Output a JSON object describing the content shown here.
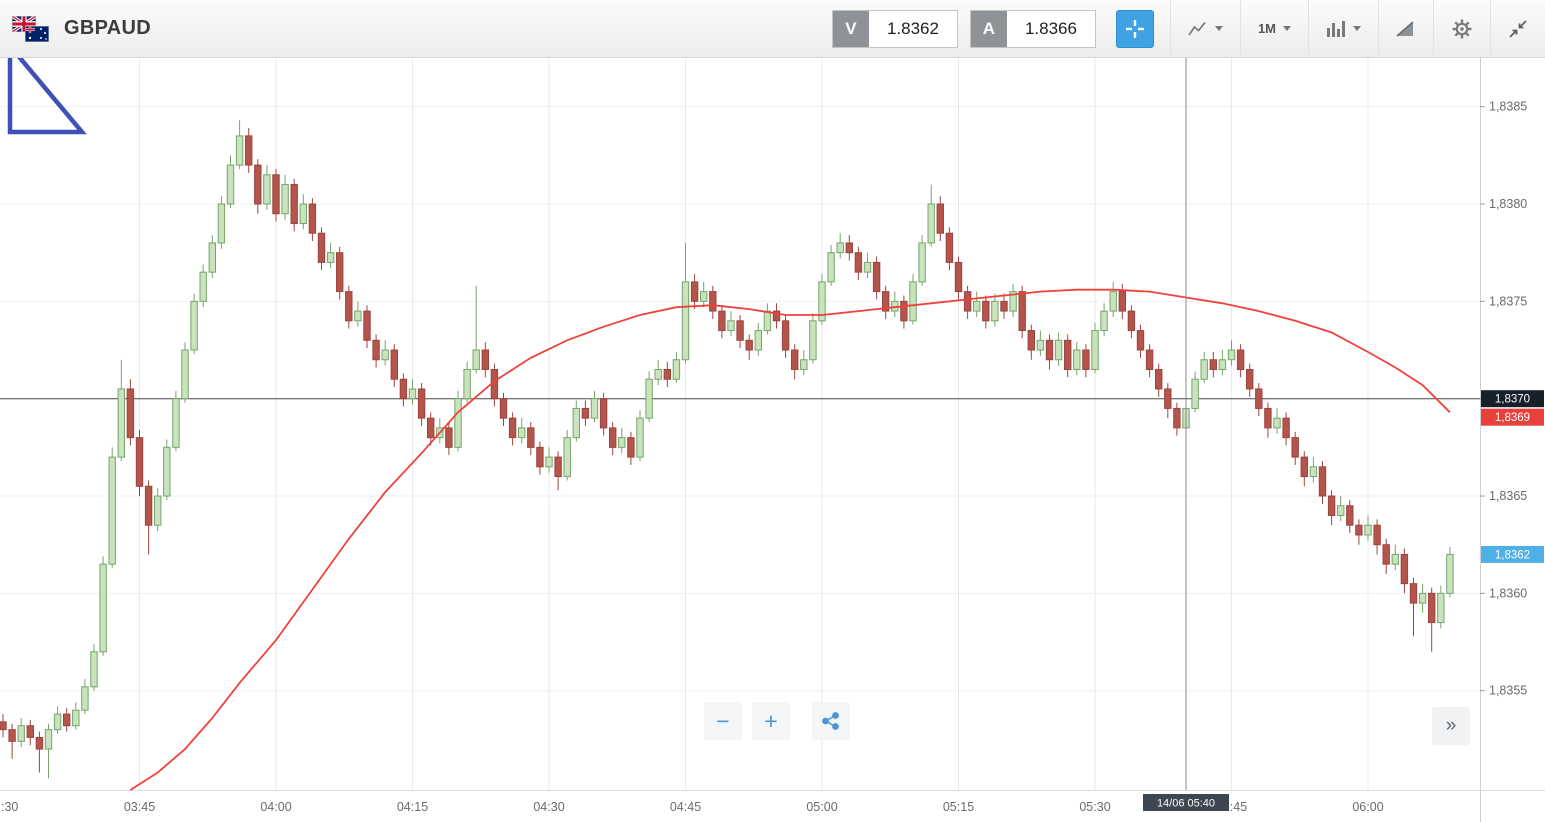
{
  "header": {
    "symbol": "GBPAUD",
    "sell": {
      "label": "V",
      "value": "1.8362"
    },
    "buy": {
      "label": "A",
      "value": "1.8366"
    },
    "timeframe": "1M"
  },
  "controls": {
    "zoom_out": "−",
    "zoom_in": "+",
    "expand": "»"
  },
  "icons": [
    "gb-au-flags-icon",
    "crosshair-icon",
    "chart-type-icon",
    "chevron-down-icon",
    "indicators-icon",
    "trend-icon",
    "settings-gear-icon",
    "collapse-icon",
    "zoom-out-icon",
    "zoom-in-icon",
    "share-icon",
    "expand-right-icon"
  ],
  "colors": {
    "up_fill": "#c9e4bc",
    "up_stroke": "#76a46c",
    "down_fill": "#b5544b",
    "down_stroke": "#9c4440",
    "ma": "#f0413b",
    "accent_blue": "#3fa3e3",
    "badge_dark": "#15202b",
    "badge_red": "#e8413b",
    "badge_blue": "#4fb0e8",
    "drawing": "#3f51b5"
  },
  "chart_data": {
    "type": "candlestick",
    "symbol": "GBPAUD",
    "interval": "1M",
    "start_time": "03:30",
    "minutes_per_candle": 1,
    "price_base": 1.83,
    "pip_unit": 0.0001,
    "grid": true,
    "y_axis": {
      "min_pips": 49.9,
      "max_pips": 87.5,
      "tick_pips": [
        85,
        80,
        75,
        70,
        65,
        60,
        55
      ],
      "tick_labels": [
        "1,8385",
        "1,8380",
        "1,8375",
        "1,8370",
        "1,8365",
        "1,8360",
        "1,8355"
      ]
    },
    "x_axis": {
      "ticks": [
        {
          "minute": 0,
          "label": ":30"
        },
        {
          "minute": 15,
          "label": "03:45"
        },
        {
          "minute": 30,
          "label": "04:00"
        },
        {
          "minute": 45,
          "label": "04:15"
        },
        {
          "minute": 60,
          "label": "04:30"
        },
        {
          "minute": 75,
          "label": "04:45"
        },
        {
          "minute": 90,
          "label": "05:00"
        },
        {
          "minute": 105,
          "label": "05:15"
        },
        {
          "minute": 120,
          "label": "05:30"
        },
        {
          "minute": 135,
          "label": "05:45"
        },
        {
          "minute": 150,
          "label": "06:00"
        }
      ]
    },
    "candles_ohlc_pips": [
      [
        53.4,
        53.8,
        52.6,
        53
      ],
      [
        53,
        53.3,
        51.5,
        52.4
      ],
      [
        52.4,
        53.6,
        52.1,
        53.2
      ],
      [
        53.2,
        53.5,
        52.2,
        52.6
      ],
      [
        52.6,
        52.9,
        50.8,
        52
      ],
      [
        52,
        53.3,
        50.5,
        53
      ],
      [
        53,
        54.2,
        52.8,
        53.8
      ],
      [
        53.8,
        54.1,
        52.9,
        53.2
      ],
      [
        53.2,
        54.4,
        53,
        54
      ],
      [
        54,
        55.6,
        53.8,
        55.2
      ],
      [
        55.2,
        57.4,
        55,
        57
      ],
      [
        57,
        61.9,
        56.8,
        61.5
      ],
      [
        61.5,
        67.5,
        61.3,
        67
      ],
      [
        67,
        72,
        66.8,
        70.5
      ],
      [
        70.5,
        71,
        67.6,
        68
      ],
      [
        68,
        68.4,
        65,
        65.5
      ],
      [
        65.5,
        65.8,
        62,
        63.5
      ],
      [
        63.5,
        65.4,
        63.2,
        65
      ],
      [
        65,
        67.9,
        64.8,
        67.5
      ],
      [
        67.5,
        70.4,
        67.3,
        70
      ],
      [
        70,
        72.9,
        69.8,
        72.5
      ],
      [
        72.5,
        75.4,
        72.3,
        75
      ],
      [
        75,
        76.9,
        74.7,
        76.5
      ],
      [
        76.5,
        78.4,
        76.2,
        78
      ],
      [
        78,
        80.4,
        77.7,
        80
      ],
      [
        80,
        82.5,
        79.8,
        82
      ],
      [
        82,
        84.3,
        81.8,
        83.5
      ],
      [
        83.5,
        83.9,
        81.6,
        82
      ],
      [
        82,
        82.3,
        79.5,
        80
      ],
      [
        80,
        82,
        79.7,
        81.5
      ],
      [
        81.5,
        81.8,
        79.1,
        79.5
      ],
      [
        79.5,
        81.5,
        79.2,
        81
      ],
      [
        81,
        81.3,
        78.6,
        79
      ],
      [
        79,
        80.5,
        78.7,
        80
      ],
      [
        80,
        80.3,
        78.1,
        78.5
      ],
      [
        78.5,
        78.8,
        76.6,
        77
      ],
      [
        77,
        78,
        76.7,
        77.5
      ],
      [
        77.5,
        77.8,
        75.1,
        75.5
      ],
      [
        75.5,
        75.8,
        73.6,
        74
      ],
      [
        74,
        75,
        73.7,
        74.5
      ],
      [
        74.5,
        74.8,
        72.6,
        73
      ],
      [
        73,
        73.3,
        71.6,
        72
      ],
      [
        72,
        73,
        71.7,
        72.5
      ],
      [
        72.5,
        72.8,
        70.6,
        71
      ],
      [
        71,
        71.3,
        69.6,
        70
      ],
      [
        70,
        71,
        69.7,
        70.5
      ],
      [
        70.5,
        70.8,
        68.6,
        69
      ],
      [
        69,
        69.3,
        67.6,
        68
      ],
      [
        68,
        69,
        67.7,
        68.5
      ],
      [
        68.5,
        68.8,
        67.1,
        67.5
      ],
      [
        67.5,
        70.4,
        67.3,
        70
      ],
      [
        70,
        71.9,
        69.8,
        71.5
      ],
      [
        71.5,
        75.8,
        71.3,
        72.5
      ],
      [
        72.5,
        72.9,
        71.1,
        71.5
      ],
      [
        71.5,
        71.8,
        69.6,
        70
      ],
      [
        70,
        70.3,
        68.6,
        69
      ],
      [
        69,
        69.3,
        67.6,
        68
      ],
      [
        68,
        69,
        67.7,
        68.5
      ],
      [
        68.5,
        68.8,
        67.1,
        67.5
      ],
      [
        67.5,
        67.8,
        66.1,
        66.5
      ],
      [
        66.5,
        67.5,
        66.2,
        67
      ],
      [
        67,
        67.3,
        65.3,
        66
      ],
      [
        66,
        68.4,
        65.8,
        68
      ],
      [
        68,
        69.9,
        67.8,
        69.5
      ],
      [
        69.5,
        69.9,
        68.6,
        69
      ],
      [
        69,
        70.4,
        68.8,
        70
      ],
      [
        70,
        70.3,
        68.1,
        68.5
      ],
      [
        68.5,
        68.8,
        67.1,
        67.5
      ],
      [
        67.5,
        68.5,
        67.2,
        68
      ],
      [
        68,
        68.3,
        66.6,
        67
      ],
      [
        67,
        69.4,
        66.8,
        69
      ],
      [
        69,
        71.4,
        68.8,
        71
      ],
      [
        71,
        72,
        70.7,
        71.5
      ],
      [
        71.5,
        71.9,
        70.6,
        71
      ],
      [
        71,
        72.4,
        70.8,
        72
      ],
      [
        72,
        78,
        71.8,
        76
      ],
      [
        76,
        76.4,
        74.6,
        75
      ],
      [
        75,
        76,
        74.7,
        75.5
      ],
      [
        75.5,
        75.8,
        74.1,
        74.5
      ],
      [
        74.5,
        74.8,
        73.1,
        73.5
      ],
      [
        73.5,
        74.5,
        73.2,
        74
      ],
      [
        74,
        74.3,
        72.6,
        73
      ],
      [
        73,
        73.3,
        72,
        72.5
      ],
      [
        72.5,
        73.9,
        72.2,
        73.5
      ],
      [
        73.5,
        74.9,
        73.3,
        74.5
      ],
      [
        74.5,
        74.9,
        73.6,
        74
      ],
      [
        74,
        74.3,
        72.1,
        72.5
      ],
      [
        72.5,
        72.8,
        71,
        71.5
      ],
      [
        71.5,
        72.5,
        71.2,
        72
      ],
      [
        72,
        74.4,
        71.8,
        74
      ],
      [
        74,
        76.4,
        73.8,
        76
      ],
      [
        76,
        77.9,
        75.8,
        77.5
      ],
      [
        77.5,
        78.5,
        77.2,
        78
      ],
      [
        78,
        78.4,
        77.1,
        77.5
      ],
      [
        77.5,
        77.8,
        76.1,
        76.5
      ],
      [
        76.5,
        77.5,
        76.2,
        77
      ],
      [
        77,
        77.3,
        75.1,
        75.5
      ],
      [
        75.5,
        75.8,
        74.1,
        74.5
      ],
      [
        74.5,
        75.5,
        74.2,
        75
      ],
      [
        75,
        75.3,
        73.6,
        74
      ],
      [
        74,
        76.4,
        73.8,
        76
      ],
      [
        76,
        78.4,
        75.8,
        78
      ],
      [
        78,
        81,
        77.8,
        80
      ],
      [
        80,
        80.4,
        78.1,
        78.5
      ],
      [
        78.5,
        78.8,
        76.6,
        77
      ],
      [
        77,
        77.3,
        75.1,
        75.5
      ],
      [
        75.5,
        75.8,
        74.1,
        74.5
      ],
      [
        74.5,
        75.5,
        74.2,
        75
      ],
      [
        75,
        75.3,
        73.6,
        74
      ],
      [
        74,
        75.4,
        73.7,
        75
      ],
      [
        75,
        75.4,
        74.1,
        74.5
      ],
      [
        74.5,
        75.9,
        74.2,
        75.5
      ],
      [
        75.5,
        75.8,
        73.1,
        73.5
      ],
      [
        73.5,
        73.8,
        72,
        72.5
      ],
      [
        72.5,
        73.5,
        72.2,
        73
      ],
      [
        73,
        73.3,
        71.5,
        72
      ],
      [
        72,
        73.4,
        71.7,
        73
      ],
      [
        73,
        73.3,
        71.1,
        71.5
      ],
      [
        71.5,
        72.9,
        71.2,
        72.5
      ],
      [
        72.5,
        72.8,
        71.1,
        71.5
      ],
      [
        71.5,
        73.9,
        71.3,
        73.5
      ],
      [
        73.5,
        74.9,
        73.2,
        74.5
      ],
      [
        74.5,
        76,
        74.2,
        75.5
      ],
      [
        75.5,
        75.9,
        74.1,
        74.5
      ],
      [
        74.5,
        74.8,
        73.1,
        73.5
      ],
      [
        73.5,
        73.8,
        72.1,
        72.5
      ],
      [
        72.5,
        72.8,
        71.1,
        71.5
      ],
      [
        71.5,
        71.8,
        70.1,
        70.5
      ],
      [
        70.5,
        70.8,
        69,
        69.5
      ],
      [
        69.5,
        69.8,
        68.1,
        68.5
      ],
      [
        68.5,
        69.9,
        68.2,
        69.5
      ],
      [
        69.5,
        71.4,
        69.3,
        71
      ],
      [
        71,
        72.4,
        70.8,
        72
      ],
      [
        72,
        72.4,
        71.1,
        71.5
      ],
      [
        71.5,
        72.5,
        71.2,
        72
      ],
      [
        72,
        73,
        71.7,
        72.5
      ],
      [
        72.5,
        72.8,
        71.1,
        71.5
      ],
      [
        71.5,
        71.8,
        70.1,
        70.5
      ],
      [
        70.5,
        70.8,
        69.1,
        69.5
      ],
      [
        69.5,
        69.8,
        68,
        68.5
      ],
      [
        68.5,
        69.5,
        68.2,
        69
      ],
      [
        69,
        69.3,
        67.6,
        68
      ],
      [
        68,
        68.3,
        66.6,
        67
      ],
      [
        67,
        67.3,
        65.5,
        66
      ],
      [
        66,
        67,
        65.7,
        66.5
      ],
      [
        66.5,
        66.8,
        64.6,
        65
      ],
      [
        65,
        65.3,
        63.5,
        64
      ],
      [
        64,
        65,
        63.7,
        64.5
      ],
      [
        64.5,
        64.8,
        63.1,
        63.5
      ],
      [
        63.5,
        63.8,
        62.5,
        63
      ],
      [
        63,
        64,
        62.7,
        63.5
      ],
      [
        63.5,
        63.8,
        62,
        62.5
      ],
      [
        62.5,
        62.8,
        61,
        61.5
      ],
      [
        61.5,
        62.5,
        61.2,
        62
      ],
      [
        62,
        62.3,
        60,
        60.5
      ],
      [
        60.5,
        60.8,
        57.8,
        59.5
      ],
      [
        59.5,
        60.5,
        59,
        60
      ],
      [
        60,
        60.3,
        57,
        58.5
      ],
      [
        58.5,
        60.4,
        58.2,
        60
      ],
      [
        60,
        62.4,
        59.8,
        62
      ]
    ],
    "ma_line": {
      "name": "moving-average",
      "points_minute_pips": [
        [
          14,
          49.9
        ],
        [
          17,
          50.8
        ],
        [
          20,
          52
        ],
        [
          23,
          53.6
        ],
        [
          26,
          55.4
        ],
        [
          30,
          57.6
        ],
        [
          34,
          60.2
        ],
        [
          38,
          62.8
        ],
        [
          42,
          65.2
        ],
        [
          46,
          67.2
        ],
        [
          50,
          69.3
        ],
        [
          54,
          70.9
        ],
        [
          58,
          72.1
        ],
        [
          62,
          73
        ],
        [
          66,
          73.7
        ],
        [
          70,
          74.3
        ],
        [
          74,
          74.7
        ],
        [
          78,
          74.8
        ],
        [
          82,
          74.6
        ],
        [
          86,
          74.3
        ],
        [
          90,
          74.3
        ],
        [
          94,
          74.5
        ],
        [
          98,
          74.7
        ],
        [
          102,
          74.9
        ],
        [
          106,
          75.1
        ],
        [
          110,
          75.3
        ],
        [
          114,
          75.5
        ],
        [
          118,
          75.6
        ],
        [
          122,
          75.6
        ],
        [
          126,
          75.5
        ],
        [
          130,
          75.2
        ],
        [
          134,
          74.9
        ],
        [
          138,
          74.5
        ],
        [
          142,
          74
        ],
        [
          146,
          73.4
        ],
        [
          150,
          72.4
        ],
        [
          153,
          71.6
        ],
        [
          156,
          70.7
        ],
        [
          159,
          69.3
        ]
      ]
    },
    "price_line": {
      "pips": 70,
      "label": "1,8370"
    },
    "badges": [
      {
        "name": "price-line",
        "pips": 70,
        "label": "1,8370",
        "color": "#15202b"
      },
      {
        "name": "indicator",
        "pips": 69.05,
        "label": "1,8369",
        "color": "#e8413b"
      },
      {
        "name": "last-price",
        "pips": 62,
        "label": "1,8362",
        "color": "#4fb0e8"
      }
    ],
    "crosshair": {
      "minute": 130,
      "time_label": "14/06 05:40"
    }
  }
}
